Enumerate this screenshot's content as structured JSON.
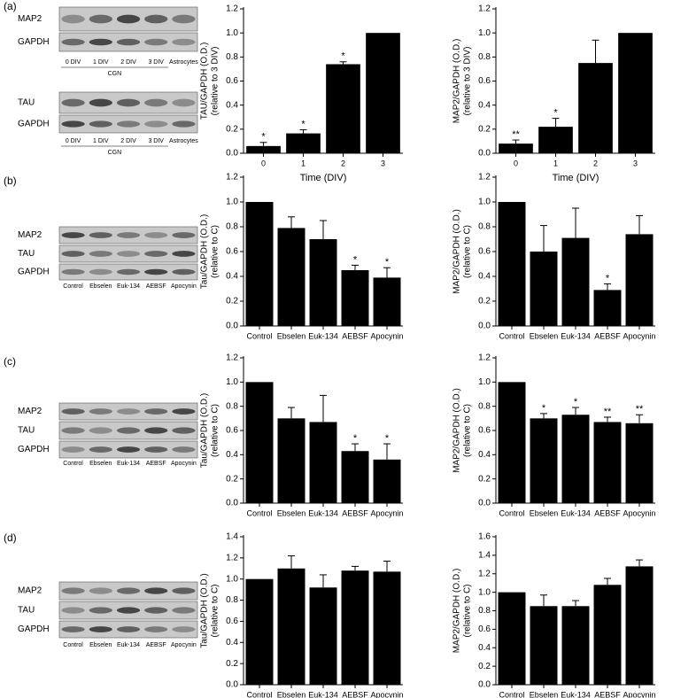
{
  "panel_labels": [
    "(a)",
    "(b)",
    "(c)",
    "(d)"
  ],
  "blots": [
    {
      "rows": [
        "MAP2",
        "GAPDH"
      ],
      "lanes": [
        "0 DIV",
        "1 DIV",
        "2 DIV",
        "3 DIV",
        "Astrocytes"
      ],
      "group": "CGN"
    },
    {
      "rows": [
        "TAU",
        "GAPDH"
      ],
      "lanes": [
        "0 DIV",
        "1 DIV",
        "2 DIV",
        "3 DIV",
        "Astrocytes"
      ],
      "group": "CGN"
    },
    {
      "rows": [
        "MAP2",
        "TAU",
        "GAPDH"
      ],
      "lanes": [
        "Control",
        "Ebselen",
        "Euk-134",
        "AEBSF",
        "Apocynin"
      ]
    },
    {
      "rows": [
        "MAP2",
        "TAU",
        "GAPDH"
      ],
      "lanes": [
        "Control",
        "Ebselen",
        "Euk-134",
        "AEBSF",
        "Apocynin"
      ]
    },
    {
      "rows": [
        "MAP2",
        "TAU",
        "GAPDH"
      ],
      "lanes": [
        "Control",
        "Ebselen",
        "Euk-134",
        "AEBSF",
        "Apocynin"
      ]
    }
  ],
  "chart_data": [
    {
      "type": "bar",
      "ylabel": [
        "TAU/GAPDH (O.D.)",
        "(relative to 3 DIV)"
      ],
      "xlabel": "Time (DIV)",
      "color": "#000000",
      "categories": [
        "0",
        "1",
        "2",
        "3"
      ],
      "values": [
        0.06,
        0.165,
        0.74,
        1.0
      ],
      "errors": [
        0.03,
        0.03,
        0.02,
        null
      ],
      "significance": [
        "*",
        "*",
        "*",
        null
      ],
      "ylim": [
        0,
        1.2
      ],
      "yticks": [
        {
          "value": 0,
          "label": "0.0"
        },
        0.2,
        0.4,
        0.6,
        0.8,
        {
          "value": 1,
          "label": "1.0"
        },
        1.2
      ]
    },
    {
      "type": "bar",
      "ylabel": [
        "MAP2/GAPDH (O.D.)",
        "(relative to 3 DIV)"
      ],
      "xlabel": "Time (DIV)",
      "color": "#000000",
      "categories": [
        "0",
        "1",
        "2",
        "3"
      ],
      "values": [
        0.08,
        0.22,
        0.75,
        1.0
      ],
      "errors": [
        0.03,
        0.07,
        0.19,
        null
      ],
      "significance": [
        "**",
        "*",
        null,
        null
      ],
      "ylim": [
        0,
        1.2
      ],
      "yticks": [
        {
          "value": 0,
          "label": "0.0"
        },
        0.2,
        0.4,
        0.6,
        0.8,
        {
          "value": 1,
          "label": "1.0"
        },
        1.2
      ]
    },
    {
      "type": "bar",
      "ylabel": [
        "Tau/GAPDH (O.D.)",
        "(relative to C)"
      ],
      "color": "#000000",
      "categories": [
        "Control",
        "Ebselen",
        "Euk-134",
        "AEBSF",
        "Apocynin"
      ],
      "values": [
        1.0,
        0.79,
        0.7,
        0.45,
        0.39
      ],
      "errors": [
        null,
        0.09,
        0.15,
        0.04,
        0.08
      ],
      "significance": [
        null,
        null,
        null,
        "*",
        "*"
      ],
      "ylim": [
        0,
        1.2
      ],
      "yticks": [
        {
          "value": 0,
          "label": "0.0"
        },
        0.2,
        0.4,
        0.6,
        0.8,
        {
          "value": 1,
          "label": "1.0"
        },
        1.2
      ]
    },
    {
      "type": "bar",
      "ylabel": [
        "MAP2/GAPDH (O.D.)",
        "(relative to C)"
      ],
      "color": "#000000",
      "categories": [
        "Control",
        "Ebselen",
        "Euk-134",
        "AEBSF",
        "Apocynin"
      ],
      "values": [
        1.0,
        0.6,
        0.71,
        0.29,
        0.74
      ],
      "errors": [
        null,
        0.21,
        0.24,
        0.05,
        0.15
      ],
      "significance": [
        null,
        null,
        null,
        "*",
        null
      ],
      "ylim": [
        0,
        1.2
      ],
      "yticks": [
        {
          "value": 0,
          "label": "0.0"
        },
        0.2,
        0.4,
        0.6,
        0.8,
        {
          "value": 1,
          "label": "1.0"
        },
        1.2
      ]
    },
    {
      "type": "bar",
      "ylabel": [
        "Tau/GAPDH (O.D.)",
        "(relative to C)"
      ],
      "color": "#000000",
      "categories": [
        "Control",
        "Ebselen",
        "Euk-134",
        "AEBSF",
        "Apocynin"
      ],
      "values": [
        1.0,
        0.7,
        0.67,
        0.43,
        0.36
      ],
      "errors": [
        null,
        0.09,
        0.22,
        0.06,
        0.13
      ],
      "significance": [
        null,
        null,
        null,
        "*",
        "*"
      ],
      "ylim": [
        0,
        1.2
      ],
      "yticks": [
        {
          "value": 0,
          "label": "0.0"
        },
        0.2,
        0.4,
        0.6,
        0.8,
        {
          "value": 1,
          "label": "1.0"
        },
        1.2
      ]
    },
    {
      "type": "bar",
      "ylabel": [
        "MAP2/GAPDH (O.D.)",
        "(relative to C)"
      ],
      "color": "#000000",
      "categories": [
        "Control",
        "Ebselen",
        "Euk-134",
        "AEBSF",
        "Apocynin"
      ],
      "values": [
        1.0,
        0.7,
        0.73,
        0.67,
        0.66
      ],
      "errors": [
        null,
        0.04,
        0.06,
        0.04,
        0.07
      ],
      "significance": [
        null,
        "*",
        "*",
        "**",
        "**"
      ],
      "ylim": [
        0,
        1.2
      ],
      "yticks": [
        {
          "value": 0,
          "label": "0.0"
        },
        0.2,
        0.4,
        0.6,
        0.8,
        {
          "value": 1,
          "label": "1.0"
        },
        1.2
      ]
    },
    {
      "type": "bar",
      "ylabel": [
        "Tau/GAPDH (O.D.)",
        "(relative to C)"
      ],
      "color": "#000000",
      "categories": [
        "Control",
        "Ebselen",
        "Euk-134",
        "AEBSF",
        "Apocynin"
      ],
      "values": [
        1.0,
        1.1,
        0.92,
        1.08,
        1.07
      ],
      "errors": [
        null,
        0.12,
        0.12,
        0.04,
        0.1
      ],
      "significance": [
        null,
        null,
        null,
        null,
        null
      ],
      "ylim": [
        0,
        1.4
      ],
      "yticks": [
        {
          "value": 0,
          "label": "0.0"
        },
        0.2,
        0.4,
        0.6,
        0.8,
        {
          "value": 1,
          "label": "1.0"
        },
        1.2,
        1.4
      ]
    },
    {
      "type": "bar",
      "ylabel": [
        "MAP2/GAPDH (O.D.)",
        "(relative to C)"
      ],
      "color": "#000000",
      "categories": [
        "Control",
        "Ebselen",
        "Euk-134",
        "AEBSF",
        "Apocynin"
      ],
      "values": [
        1.0,
        0.85,
        0.85,
        1.08,
        1.28
      ],
      "errors": [
        null,
        0.12,
        0.06,
        0.07,
        0.07
      ],
      "significance": [
        null,
        null,
        null,
        null,
        null
      ],
      "ylim": [
        0,
        1.6
      ],
      "yticks": [
        {
          "value": 0,
          "label": "0.0"
        },
        0.2,
        0.4,
        0.6,
        0.8,
        {
          "value": 1,
          "label": "1.0"
        },
        1.2,
        1.4,
        1.6
      ]
    }
  ]
}
